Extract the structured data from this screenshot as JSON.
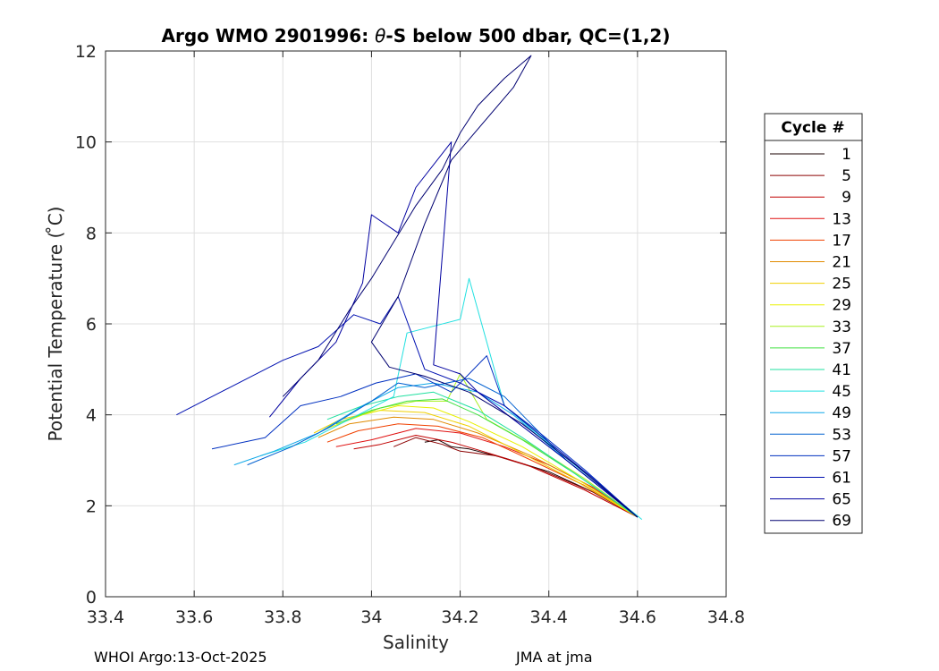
{
  "chart_data": {
    "type": "line",
    "title_prefix": "Argo WMO 2901996: ",
    "title_theta": "θ",
    "title_suffix": "-S below 500 dbar,  QC=(1,2)",
    "xlabel": "Salinity",
    "ylabel": "Potential Temperature ( ̊C)",
    "xlim": [
      33.4,
      34.8
    ],
    "ylim": [
      0,
      12
    ],
    "xticks": [
      33.4,
      33.6,
      33.8,
      34,
      34.2,
      34.4,
      34.6,
      34.8
    ],
    "xtick_labels": [
      "33.4",
      "33.6",
      "33.8",
      "34",
      "34.2",
      "34.4",
      "34.6",
      "34.8"
    ],
    "yticks": [
      0,
      2,
      4,
      6,
      8,
      10,
      12
    ],
    "ytick_labels": [
      "0",
      "2",
      "4",
      "6",
      "8",
      "10",
      "12"
    ],
    "grid": true,
    "legend": {
      "title": "Cycle #",
      "placement": "right",
      "entries": [
        {
          "label": "1",
          "color": "#1a0000"
        },
        {
          "label": "5",
          "color": "#8b0000"
        },
        {
          "label": "9",
          "color": "#c00000"
        },
        {
          "label": "13",
          "color": "#e01010"
        },
        {
          "label": "17",
          "color": "#f04000"
        },
        {
          "label": "21",
          "color": "#e08a00"
        },
        {
          "label": "25",
          "color": "#f0d000"
        },
        {
          "label": "29",
          "color": "#e8f000"
        },
        {
          "label": "33",
          "color": "#a8f020"
        },
        {
          "label": "37",
          "color": "#40e040"
        },
        {
          "label": "41",
          "color": "#20e0a0"
        },
        {
          "label": "45",
          "color": "#20e0e0"
        },
        {
          "label": "49",
          "color": "#10a8e8"
        },
        {
          "label": "53",
          "color": "#0060d0"
        },
        {
          "label": "57",
          "color": "#0030c0"
        },
        {
          "label": "61",
          "color": "#0010b0"
        },
        {
          "label": "65",
          "color": "#0000a0"
        },
        {
          "label": "69",
          "color": "#000070"
        }
      ]
    },
    "series": [
      {
        "name": "1",
        "color": "#1a0000",
        "x": [
          34.12,
          34.15,
          34.18,
          34.22,
          34.3,
          34.4,
          34.5,
          34.6
        ],
        "y": [
          3.4,
          3.45,
          3.3,
          3.25,
          3.05,
          2.75,
          2.3,
          1.75
        ]
      },
      {
        "name": "5",
        "color": "#8b0000",
        "x": [
          34.05,
          34.1,
          34.16,
          34.2,
          34.28,
          34.38,
          34.5,
          34.6
        ],
        "y": [
          3.3,
          3.5,
          3.35,
          3.2,
          3.1,
          2.8,
          2.3,
          1.75
        ]
      },
      {
        "name": "9",
        "color": "#c00000",
        "x": [
          33.96,
          34.02,
          34.1,
          34.18,
          34.25,
          34.35,
          34.48,
          34.6
        ],
        "y": [
          3.25,
          3.35,
          3.55,
          3.4,
          3.2,
          2.9,
          2.35,
          1.75
        ]
      },
      {
        "name": "13",
        "color": "#e01010",
        "x": [
          33.92,
          34.0,
          34.1,
          34.2,
          34.3,
          34.4,
          34.5,
          34.6
        ],
        "y": [
          3.3,
          3.45,
          3.7,
          3.6,
          3.3,
          2.9,
          2.4,
          1.75
        ]
      },
      {
        "name": "17",
        "color": "#f04000",
        "x": [
          33.9,
          33.97,
          34.06,
          34.15,
          34.25,
          34.35,
          34.48,
          34.6
        ],
        "y": [
          3.4,
          3.65,
          3.8,
          3.75,
          3.5,
          3.05,
          2.45,
          1.75
        ]
      },
      {
        "name": "21",
        "color": "#e08a00",
        "x": [
          33.88,
          33.95,
          34.05,
          34.14,
          34.24,
          34.36,
          34.48,
          34.6
        ],
        "y": [
          3.5,
          3.8,
          3.95,
          3.9,
          3.6,
          3.1,
          2.5,
          1.75
        ]
      },
      {
        "name": "25",
        "color": "#f0d000",
        "x": [
          33.87,
          33.93,
          34.02,
          34.12,
          34.22,
          34.32,
          34.46,
          34.6
        ],
        "y": [
          3.6,
          3.9,
          4.1,
          4.05,
          3.75,
          3.25,
          2.55,
          1.75
        ]
      },
      {
        "name": "29",
        "color": "#e8f000",
        "x": [
          33.9,
          33.98,
          34.06,
          34.14,
          34.22,
          34.34,
          34.47,
          34.6
        ],
        "y": [
          3.7,
          4.0,
          4.2,
          4.15,
          3.85,
          3.3,
          2.55,
          1.75
        ]
      },
      {
        "name": "33",
        "color": "#a8f020",
        "x": [
          33.95,
          34.02,
          34.1,
          34.17,
          34.2,
          34.26,
          34.36,
          34.48,
          34.6
        ],
        "y": [
          3.9,
          4.15,
          4.3,
          4.3,
          4.9,
          3.9,
          3.35,
          2.6,
          1.75
        ]
      },
      {
        "name": "37",
        "color": "#40e040",
        "x": [
          33.92,
          34.0,
          34.08,
          34.16,
          34.24,
          34.34,
          34.46,
          34.6
        ],
        "y": [
          3.8,
          4.1,
          4.3,
          4.35,
          4.0,
          3.45,
          2.7,
          1.75
        ]
      },
      {
        "name": "41",
        "color": "#20e0a0",
        "x": [
          33.9,
          33.98,
          34.06,
          34.14,
          34.24,
          34.34,
          34.46,
          34.6
        ],
        "y": [
          3.9,
          4.2,
          4.4,
          4.5,
          4.1,
          3.5,
          2.7,
          1.75
        ]
      },
      {
        "name": "45",
        "color": "#20e0e0",
        "x": [
          33.75,
          33.85,
          33.95,
          34.05,
          34.08,
          34.2,
          34.22,
          34.3,
          34.42,
          34.61
        ],
        "y": [
          3.1,
          3.4,
          3.9,
          4.4,
          5.8,
          6.1,
          7.0,
          4.2,
          3.2,
          1.7
        ]
      },
      {
        "name": "49",
        "color": "#10a8e8",
        "x": [
          33.69,
          33.78,
          33.88,
          33.98,
          34.06,
          34.14,
          34.24,
          34.32,
          34.44,
          34.6
        ],
        "y": [
          2.9,
          3.2,
          3.6,
          4.2,
          4.6,
          4.7,
          4.5,
          4.0,
          3.0,
          1.75
        ]
      },
      {
        "name": "53",
        "color": "#0060d0",
        "x": [
          33.72,
          33.82,
          33.9,
          34.0,
          34.06,
          34.12,
          34.22,
          34.3,
          34.36,
          34.44,
          34.6
        ],
        "y": [
          2.9,
          3.3,
          3.7,
          4.3,
          4.7,
          4.6,
          4.8,
          4.4,
          3.8,
          3.0,
          1.75
        ]
      },
      {
        "name": "57",
        "color": "#0030c0",
        "x": [
          33.64,
          33.76,
          33.84,
          33.93,
          34.01,
          34.1,
          34.18,
          34.26,
          34.3,
          34.38,
          34.48,
          34.6
        ],
        "y": [
          3.25,
          3.5,
          4.2,
          4.4,
          4.7,
          4.9,
          4.5,
          5.3,
          4.2,
          3.6,
          2.8,
          1.75
        ]
      },
      {
        "name": "61",
        "color": "#0010b0",
        "x": [
          33.56,
          33.68,
          33.8,
          33.88,
          33.96,
          34.02,
          34.06,
          34.12,
          34.2,
          34.3,
          34.4,
          34.5,
          34.6
        ],
        "y": [
          4.0,
          4.6,
          5.2,
          5.5,
          6.2,
          6.0,
          6.6,
          5.0,
          4.7,
          4.2,
          3.4,
          2.6,
          1.75
        ]
      },
      {
        "name": "65",
        "color": "#0000a0",
        "x": [
          33.77,
          33.84,
          33.92,
          33.98,
          34.0,
          34.06,
          34.1,
          34.18,
          34.14,
          34.2,
          34.24,
          34.32,
          34.44,
          34.6
        ],
        "y": [
          3.95,
          4.8,
          5.6,
          6.9,
          8.4,
          8.0,
          9.0,
          10.0,
          5.1,
          4.9,
          4.5,
          3.9,
          3.0,
          1.75
        ]
      },
      {
        "name": "69",
        "color": "#000070",
        "x": [
          33.8,
          33.88,
          33.95,
          34.0,
          34.05,
          34.1,
          34.16,
          34.2,
          34.24,
          34.3,
          34.36,
          34.32,
          34.18,
          34.12,
          34.06,
          34.0,
          34.04,
          34.12,
          34.22,
          34.34,
          34.46,
          34.6
        ],
        "y": [
          4.4,
          5.2,
          6.3,
          7.0,
          7.8,
          8.6,
          9.4,
          10.2,
          10.8,
          11.4,
          11.9,
          11.2,
          9.6,
          8.2,
          6.6,
          5.6,
          5.05,
          4.85,
          4.5,
          3.8,
          2.9,
          1.75
        ]
      }
    ]
  },
  "footer": {
    "left": "WHOI Argo:13-Oct-2025",
    "right": "JMA at jma"
  }
}
